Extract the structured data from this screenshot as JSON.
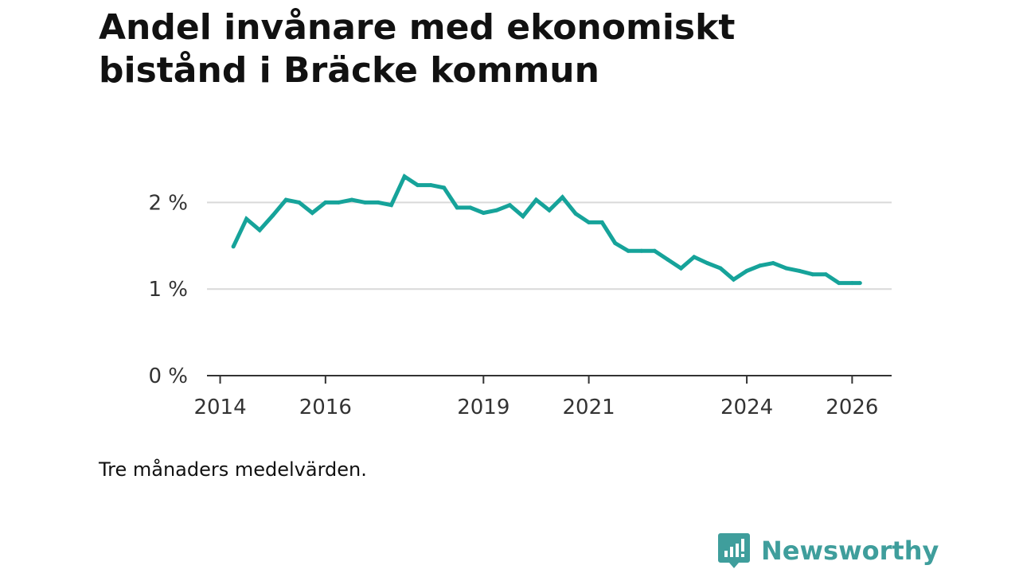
{
  "title": "Andel invånare med ekonomiskt bistånd i Bräcke kommun",
  "footnote": "Tre månaders medelvärden.",
  "brand": {
    "name": "Newsworthy",
    "icon": "newsworthy-logo-icon",
    "color": "#3f9e9c"
  },
  "colors": {
    "line": "#16a39a",
    "grid": "#d9d9d9",
    "axis": "#333333"
  },
  "chart_data": {
    "type": "line",
    "title": "Andel invånare med ekonomiskt bistånd i Bräcke kommun",
    "xlabel": "",
    "ylabel": "",
    "xlim": [
      2013.75,
      2026.75
    ],
    "ylim": [
      0,
      2.5
    ],
    "grid": true,
    "x_ticks": [
      2014,
      2016,
      2019,
      2021,
      2024,
      2026
    ],
    "x_tick_labels": [
      "2014",
      "2016",
      "2019",
      "2021",
      "2024",
      "2026"
    ],
    "y_ticks": [
      0,
      1,
      2
    ],
    "y_tick_labels": [
      "0 %",
      "1 %",
      "2 %"
    ],
    "series": [
      {
        "name": "Andel invånare med ekonomiskt bistånd",
        "x": [
          2014.25,
          2014.5,
          2014.75,
          2015.0,
          2015.25,
          2015.5,
          2015.75,
          2016.0,
          2016.25,
          2016.5,
          2016.75,
          2017.0,
          2017.25,
          2017.5,
          2017.75,
          2018.0,
          2018.25,
          2018.5,
          2018.75,
          2019.0,
          2019.25,
          2019.5,
          2019.75,
          2020.0,
          2020.25,
          2020.5,
          2020.75,
          2021.0,
          2021.25,
          2021.5,
          2021.75,
          2022.0,
          2022.25,
          2022.5,
          2022.75,
          2023.0,
          2023.25,
          2023.5,
          2023.75,
          2024.0,
          2024.25,
          2024.5,
          2024.75,
          2025.0,
          2025.25,
          2025.5,
          2025.75,
          2026.0,
          2026.15
        ],
        "values": [
          1.49,
          1.81,
          1.68,
          1.85,
          2.03,
          2.0,
          1.88,
          2.0,
          2.0,
          2.03,
          2.0,
          2.0,
          1.97,
          2.3,
          2.2,
          2.2,
          2.17,
          1.94,
          1.94,
          1.88,
          1.91,
          1.97,
          1.84,
          2.03,
          1.91,
          2.06,
          1.87,
          1.77,
          1.77,
          1.53,
          1.44,
          1.44,
          1.44,
          1.34,
          1.24,
          1.37,
          1.3,
          1.24,
          1.11,
          1.21,
          1.27,
          1.3,
          1.24,
          1.21,
          1.17,
          1.17,
          1.07,
          1.07,
          1.07
        ]
      }
    ]
  }
}
